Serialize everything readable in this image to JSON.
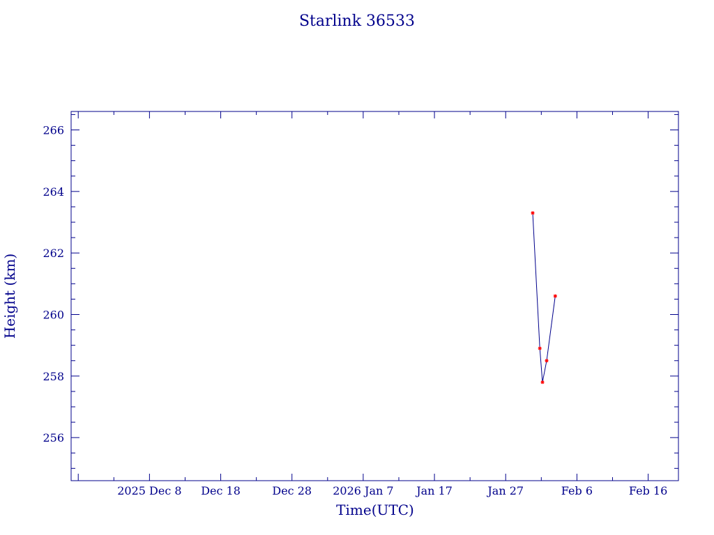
{
  "chart_data": {
    "type": "line",
    "title": "Starlink 36533",
    "xlabel": "Time(UTC)",
    "ylabel": "Height (km)",
    "x_axis": {
      "kind": "date",
      "range": [
        "2025-11-27T00:00",
        "2026-02-20T06:00"
      ],
      "major_ticks": [
        {
          "date": "2025-12-08",
          "label": "2025 Dec  8"
        },
        {
          "date": "2025-12-18",
          "label": "Dec 18"
        },
        {
          "date": "2025-12-28",
          "label": "Dec 28"
        },
        {
          "date": "2026-01-07",
          "label": "2026 Jan  7"
        },
        {
          "date": "2026-01-17",
          "label": "Jan 17"
        },
        {
          "date": "2026-01-27",
          "label": "Jan 27"
        },
        {
          "date": "2026-02-06",
          "label": "Feb  6"
        },
        {
          "date": "2026-02-16",
          "label": "Feb 16"
        }
      ]
    },
    "y_axis": {
      "range": [
        254.6,
        266.6
      ],
      "major_ticks": [
        256,
        258,
        260,
        262,
        264,
        266
      ],
      "minor_step": 0.5
    },
    "grid": false,
    "legend": "none",
    "series": [
      {
        "points": [
          {
            "date": "2026-01-30T19:00",
            "height": 263.3
          },
          {
            "date": "2026-01-31T19:00",
            "height": 258.9
          },
          {
            "date": "2026-02-01T04:00",
            "height": 257.8
          },
          {
            "date": "2026-02-01T18:00",
            "height": 258.5
          },
          {
            "date": "2026-02-02T23:00",
            "height": 260.6
          }
        ]
      }
    ],
    "colors": {
      "axes": "#00008b",
      "line": "#00008b",
      "marker": "#ff0000"
    }
  }
}
